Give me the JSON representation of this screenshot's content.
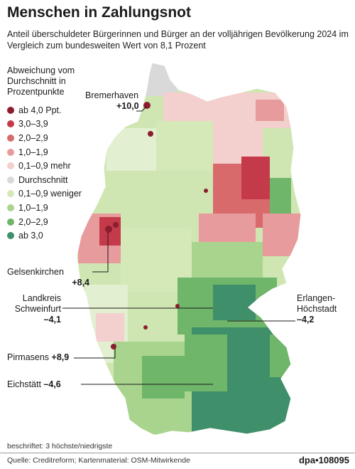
{
  "header": {
    "title": "Menschen in Zahlungsnot",
    "subtitle": "Anteil überschuldeter Bürgerinnen und Bürger an der volljährigen Bevölkerung 2024 im Vergleich zum bundesweiten Wert von 8,1 Prozent"
  },
  "legend": {
    "title": "Abweichung vom Durchschnitt in Prozentpunkte",
    "items": [
      {
        "label": "ab 4,0 Ppt.",
        "color": "#8c1d2e"
      },
      {
        "label": "3,0–3,9",
        "color": "#c53a4a"
      },
      {
        "label": "2,0–2,9",
        "color": "#d96a6c"
      },
      {
        "label": "1,0–1,9",
        "color": "#e79b9c"
      },
      {
        "label": "0,1–0,9 mehr",
        "color": "#f3cfcd"
      },
      {
        "label": "Durchschnitt",
        "color": "#d9d9d9"
      },
      {
        "label": "0,1–0,9 weniger",
        "color": "#d5e8b8"
      },
      {
        "label": "1,0–1,9",
        "color": "#a9d48e"
      },
      {
        "label": "2,0–2,9",
        "color": "#6fb56a"
      },
      {
        "label": "ab 3,0",
        "color": "#3f8f6a"
      }
    ]
  },
  "callouts": {
    "bremerhaven": {
      "name": "Bremerhaven",
      "value": "+10,0"
    },
    "gelsenkirchen": {
      "name": "Gelsenkirchen",
      "value": "+8,4"
    },
    "schweinfurt": {
      "name_line1": "Landkreis",
      "name_line2": "Schweinfurt",
      "value": "–4,1"
    },
    "erlangen": {
      "name_line1": "Erlangen-",
      "name_line2": "Höchstadt",
      "value": "–4,2"
    },
    "pirmasens": {
      "name": "Pirmasens",
      "value": "+8,9"
    },
    "eichstaett": {
      "name": "Eichstätt",
      "value": "–4,6"
    }
  },
  "note": "beschriftet: 3 höchste/niedrigste",
  "footer": {
    "source": "Quelle: Creditreform; Kartenmaterial: OSM-Mitwirkende",
    "credit": "dpa•108095"
  }
}
